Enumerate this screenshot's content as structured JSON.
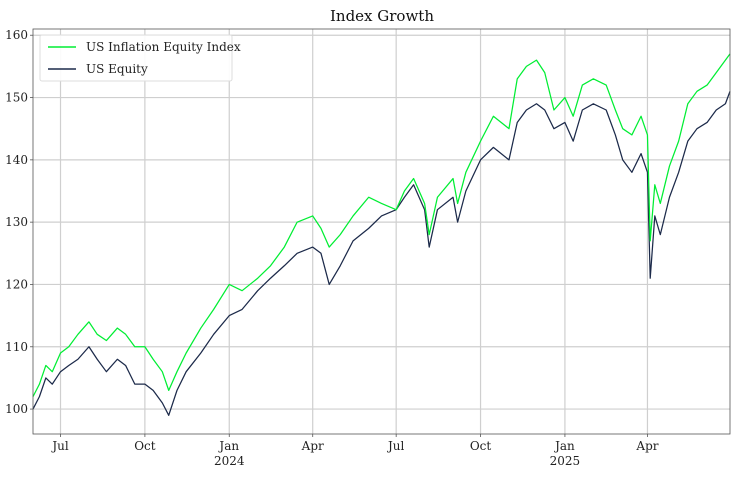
{
  "chart_data": {
    "type": "line",
    "title": "Index Growth",
    "xlabel": "",
    "ylabel": "",
    "x_range": [
      "2023-06-01",
      "2025-06-30"
    ],
    "ylim": [
      96,
      161
    ],
    "y_ticks": [
      100,
      110,
      120,
      130,
      140,
      150,
      160
    ],
    "x_ticks": [
      {
        "date": "2023-07-01",
        "label": "Jul",
        "sublabel": ""
      },
      {
        "date": "2023-10-01",
        "label": "Oct",
        "sublabel": ""
      },
      {
        "date": "2024-01-01",
        "label": "Jan",
        "sublabel": "2024"
      },
      {
        "date": "2024-04-01",
        "label": "Apr",
        "sublabel": ""
      },
      {
        "date": "2024-07-01",
        "label": "Jul",
        "sublabel": ""
      },
      {
        "date": "2024-10-01",
        "label": "Oct",
        "sublabel": ""
      },
      {
        "date": "2025-01-01",
        "label": "Jan",
        "sublabel": "2025"
      },
      {
        "date": "2025-04-01",
        "label": "Apr",
        "sublabel": ""
      }
    ],
    "grid": true,
    "legend_position": "top-left",
    "series": [
      {
        "name": "US Inflation Equity Index",
        "color": "#00ee33",
        "points": [
          [
            "2023-06-01",
            102
          ],
          [
            "2023-06-08",
            104
          ],
          [
            "2023-06-15",
            107
          ],
          [
            "2023-06-22",
            106
          ],
          [
            "2023-07-01",
            109
          ],
          [
            "2023-07-10",
            110
          ],
          [
            "2023-07-20",
            112
          ],
          [
            "2023-08-01",
            114
          ],
          [
            "2023-08-10",
            112
          ],
          [
            "2023-08-20",
            111
          ],
          [
            "2023-09-01",
            113
          ],
          [
            "2023-09-10",
            112
          ],
          [
            "2023-09-20",
            110
          ],
          [
            "2023-10-01",
            110
          ],
          [
            "2023-10-10",
            108
          ],
          [
            "2023-10-20",
            106
          ],
          [
            "2023-10-27",
            103
          ],
          [
            "2023-11-05",
            106
          ],
          [
            "2023-11-15",
            109
          ],
          [
            "2023-12-01",
            113
          ],
          [
            "2023-12-15",
            116
          ],
          [
            "2024-01-01",
            120
          ],
          [
            "2024-01-15",
            119
          ],
          [
            "2024-02-01",
            121
          ],
          [
            "2024-02-15",
            123
          ],
          [
            "2024-03-01",
            126
          ],
          [
            "2024-03-15",
            130
          ],
          [
            "2024-04-01",
            131
          ],
          [
            "2024-04-10",
            129
          ],
          [
            "2024-04-19",
            126
          ],
          [
            "2024-05-01",
            128
          ],
          [
            "2024-05-15",
            131
          ],
          [
            "2024-06-01",
            134
          ],
          [
            "2024-06-15",
            133
          ],
          [
            "2024-07-01",
            132
          ],
          [
            "2024-07-10",
            135
          ],
          [
            "2024-07-20",
            137
          ],
          [
            "2024-08-01",
            133
          ],
          [
            "2024-08-06",
            128
          ],
          [
            "2024-08-15",
            134
          ],
          [
            "2024-09-01",
            137
          ],
          [
            "2024-09-06",
            133
          ],
          [
            "2024-09-15",
            138
          ],
          [
            "2024-10-01",
            143
          ],
          [
            "2024-10-15",
            147
          ],
          [
            "2024-11-01",
            145
          ],
          [
            "2024-11-10",
            153
          ],
          [
            "2024-11-20",
            155
          ],
          [
            "2024-12-01",
            156
          ],
          [
            "2024-12-10",
            154
          ],
          [
            "2024-12-20",
            148
          ],
          [
            "2025-01-01",
            150
          ],
          [
            "2025-01-10",
            147
          ],
          [
            "2025-01-20",
            152
          ],
          [
            "2025-02-01",
            153
          ],
          [
            "2025-02-15",
            152
          ],
          [
            "2025-02-25",
            148
          ],
          [
            "2025-03-05",
            145
          ],
          [
            "2025-03-15",
            144
          ],
          [
            "2025-03-25",
            147
          ],
          [
            "2025-04-01",
            144
          ],
          [
            "2025-04-04",
            127
          ],
          [
            "2025-04-09",
            136
          ],
          [
            "2025-04-15",
            133
          ],
          [
            "2025-04-25",
            139
          ],
          [
            "2025-05-05",
            143
          ],
          [
            "2025-05-15",
            149
          ],
          [
            "2025-05-25",
            151
          ],
          [
            "2025-06-05",
            152
          ],
          [
            "2025-06-15",
            154
          ],
          [
            "2025-06-25",
            156
          ],
          [
            "2025-06-30",
            157
          ]
        ]
      },
      {
        "name": "US Equity",
        "color": "#1c2a4a",
        "points": [
          [
            "2023-06-01",
            100
          ],
          [
            "2023-06-08",
            102
          ],
          [
            "2023-06-15",
            105
          ],
          [
            "2023-06-22",
            104
          ],
          [
            "2023-07-01",
            106
          ],
          [
            "2023-07-10",
            107
          ],
          [
            "2023-07-20",
            108
          ],
          [
            "2023-08-01",
            110
          ],
          [
            "2023-08-10",
            108
          ],
          [
            "2023-08-20",
            106
          ],
          [
            "2023-09-01",
            108
          ],
          [
            "2023-09-10",
            107
          ],
          [
            "2023-09-20",
            104
          ],
          [
            "2023-10-01",
            104
          ],
          [
            "2023-10-10",
            103
          ],
          [
            "2023-10-20",
            101
          ],
          [
            "2023-10-27",
            99
          ],
          [
            "2023-11-05",
            103
          ],
          [
            "2023-11-15",
            106
          ],
          [
            "2023-12-01",
            109
          ],
          [
            "2023-12-15",
            112
          ],
          [
            "2024-01-01",
            115
          ],
          [
            "2024-01-15",
            116
          ],
          [
            "2024-02-01",
            119
          ],
          [
            "2024-02-15",
            121
          ],
          [
            "2024-03-01",
            123
          ],
          [
            "2024-03-15",
            125
          ],
          [
            "2024-04-01",
            126
          ],
          [
            "2024-04-10",
            125
          ],
          [
            "2024-04-19",
            120
          ],
          [
            "2024-05-01",
            123
          ],
          [
            "2024-05-15",
            127
          ],
          [
            "2024-06-01",
            129
          ],
          [
            "2024-06-15",
            131
          ],
          [
            "2024-07-01",
            132
          ],
          [
            "2024-07-10",
            134
          ],
          [
            "2024-07-20",
            136
          ],
          [
            "2024-08-01",
            132
          ],
          [
            "2024-08-06",
            126
          ],
          [
            "2024-08-15",
            132
          ],
          [
            "2024-09-01",
            134
          ],
          [
            "2024-09-06",
            130
          ],
          [
            "2024-09-15",
            135
          ],
          [
            "2024-10-01",
            140
          ],
          [
            "2024-10-15",
            142
          ],
          [
            "2024-11-01",
            140
          ],
          [
            "2024-11-10",
            146
          ],
          [
            "2024-11-20",
            148
          ],
          [
            "2024-12-01",
            149
          ],
          [
            "2024-12-10",
            148
          ],
          [
            "2024-12-20",
            145
          ],
          [
            "2025-01-01",
            146
          ],
          [
            "2025-01-10",
            143
          ],
          [
            "2025-01-20",
            148
          ],
          [
            "2025-02-01",
            149
          ],
          [
            "2025-02-15",
            148
          ],
          [
            "2025-02-25",
            144
          ],
          [
            "2025-03-05",
            140
          ],
          [
            "2025-03-15",
            138
          ],
          [
            "2025-03-25",
            141
          ],
          [
            "2025-04-01",
            138
          ],
          [
            "2025-04-04",
            121
          ],
          [
            "2025-04-09",
            131
          ],
          [
            "2025-04-15",
            128
          ],
          [
            "2025-04-25",
            134
          ],
          [
            "2025-05-05",
            138
          ],
          [
            "2025-05-15",
            143
          ],
          [
            "2025-05-25",
            145
          ],
          [
            "2025-06-05",
            146
          ],
          [
            "2025-06-15",
            148
          ],
          [
            "2025-06-25",
            149
          ],
          [
            "2025-06-30",
            151
          ]
        ]
      }
    ]
  }
}
